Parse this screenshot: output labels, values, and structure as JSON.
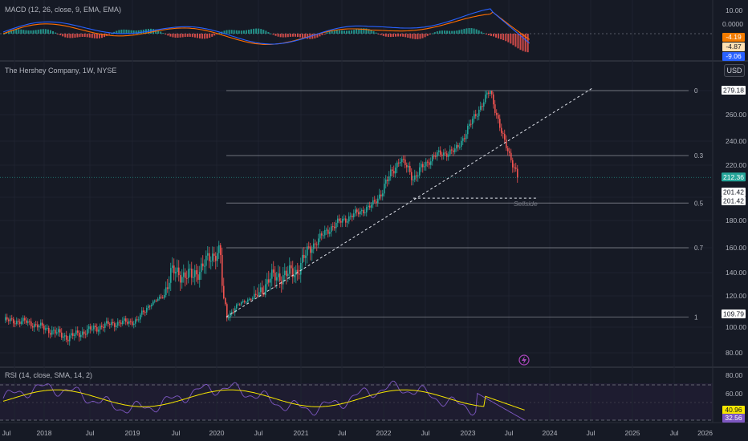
{
  "macd": {
    "title": "MACD (12, 26, close, 9, EMA, EMA)",
    "axis_labels": [
      "10.00",
      "0.0000"
    ],
    "badges": [
      {
        "text": "-4.19",
        "color": "#f57c00",
        "fg": "#ffffff"
      },
      {
        "text": "-4.87",
        "color": "#ffe0b2",
        "fg": "#131722"
      },
      {
        "text": "-9.06",
        "color": "#2962ff",
        "fg": "#ffffff"
      }
    ]
  },
  "main": {
    "title": "The Hershey Company, 1W, NYSE",
    "currency": "USD",
    "y_ticks": [
      "260.00",
      "240.00",
      "220.00",
      "180.00",
      "160.00",
      "140.00",
      "120.00",
      "100.00",
      "80.00"
    ],
    "fib_levels": [
      "0",
      "0.3",
      "0.5",
      "0.7",
      "1"
    ],
    "annotation": "Sellside",
    "price_labels": [
      {
        "text": "279.18",
        "bg": "#ffffff",
        "fg": "#131722"
      },
      {
        "text": "212.36",
        "bg": "#26a69a",
        "fg": "#ffffff"
      },
      {
        "text": "201.42",
        "bg": "#ffffff",
        "fg": "#131722"
      },
      {
        "text": "201.42",
        "bg": "#ffffff",
        "fg": "#131722"
      },
      {
        "text": "109.79",
        "bg": "#ffffff",
        "fg": "#131722"
      }
    ],
    "event_icon": "lightning-icon"
  },
  "rsi": {
    "title": "RSI (14, close, SMA, 14, 2)",
    "axis_labels": [
      "80.00",
      "60.00"
    ],
    "badges": [
      {
        "text": "40.96",
        "color": "#f7e600",
        "fg": "#131722"
      },
      {
        "text": "32.56",
        "color": "#7e57c2",
        "fg": "#ffffff"
      }
    ]
  },
  "time_axis": [
    "Jul",
    "2018",
    "Jul",
    "2019",
    "Jul",
    "2020",
    "Jul",
    "2021",
    "Jul",
    "2022",
    "Jul",
    "2023",
    "Jul",
    "2024",
    "Jul",
    "2025",
    "Jul",
    "2026"
  ],
  "colors": {
    "up": "#26a69a",
    "down": "#ef5350",
    "macd": "#2962ff",
    "signal": "#ff6d00",
    "rsi": "#7e57c2",
    "rsi_ma": "#f7e600"
  },
  "chart_data": {
    "type": "candlestick",
    "title": "The Hershey Company, 1W, NYSE",
    "x_range": [
      "2017-06",
      "2026-01"
    ],
    "ylim": [
      75,
      300
    ],
    "price_path": [
      {
        "date": "2017-06",
        "price": 107
      },
      {
        "date": "2017-10",
        "price": 105
      },
      {
        "date": "2018-04",
        "price": 92
      },
      {
        "date": "2018-10",
        "price": 103
      },
      {
        "date": "2019-02",
        "price": 106
      },
      {
        "date": "2019-05",
        "price": 133
      },
      {
        "date": "2019-07",
        "price": 150
      },
      {
        "date": "2019-10",
        "price": 148
      },
      {
        "date": "2020-02",
        "price": 160
      },
      {
        "date": "2020-03",
        "price": 109.79
      },
      {
        "date": "2020-06",
        "price": 133
      },
      {
        "date": "2020-09",
        "price": 147
      },
      {
        "date": "2021-01",
        "price": 150
      },
      {
        "date": "2021-06",
        "price": 175
      },
      {
        "date": "2021-12",
        "price": 193
      },
      {
        "date": "2022-04",
        "price": 225
      },
      {
        "date": "2022-06",
        "price": 212
      },
      {
        "date": "2022-09",
        "price": 228
      },
      {
        "date": "2022-12",
        "price": 232
      },
      {
        "date": "2023-04",
        "price": 270
      },
      {
        "date": "2023-05",
        "price": 279.18
      },
      {
        "date": "2023-07",
        "price": 240
      },
      {
        "date": "2023-09",
        "price": 212.36
      }
    ],
    "fib_retracement": [
      {
        "level": "0",
        "price": 279.18
      },
      {
        "level": "0.3",
        "price": 228
      },
      {
        "level": "0.5",
        "price": 195
      },
      {
        "level": "0.7",
        "price": 160
      },
      {
        "level": "1",
        "price": 109.79
      }
    ],
    "support_level": 201.42,
    "last_price": 212.36,
    "rsi_last": 32.56,
    "rsi_ma_last": 40.96,
    "macd_last": -9.06,
    "signal_last": -4.87,
    "histogram_last": -4.19
  }
}
